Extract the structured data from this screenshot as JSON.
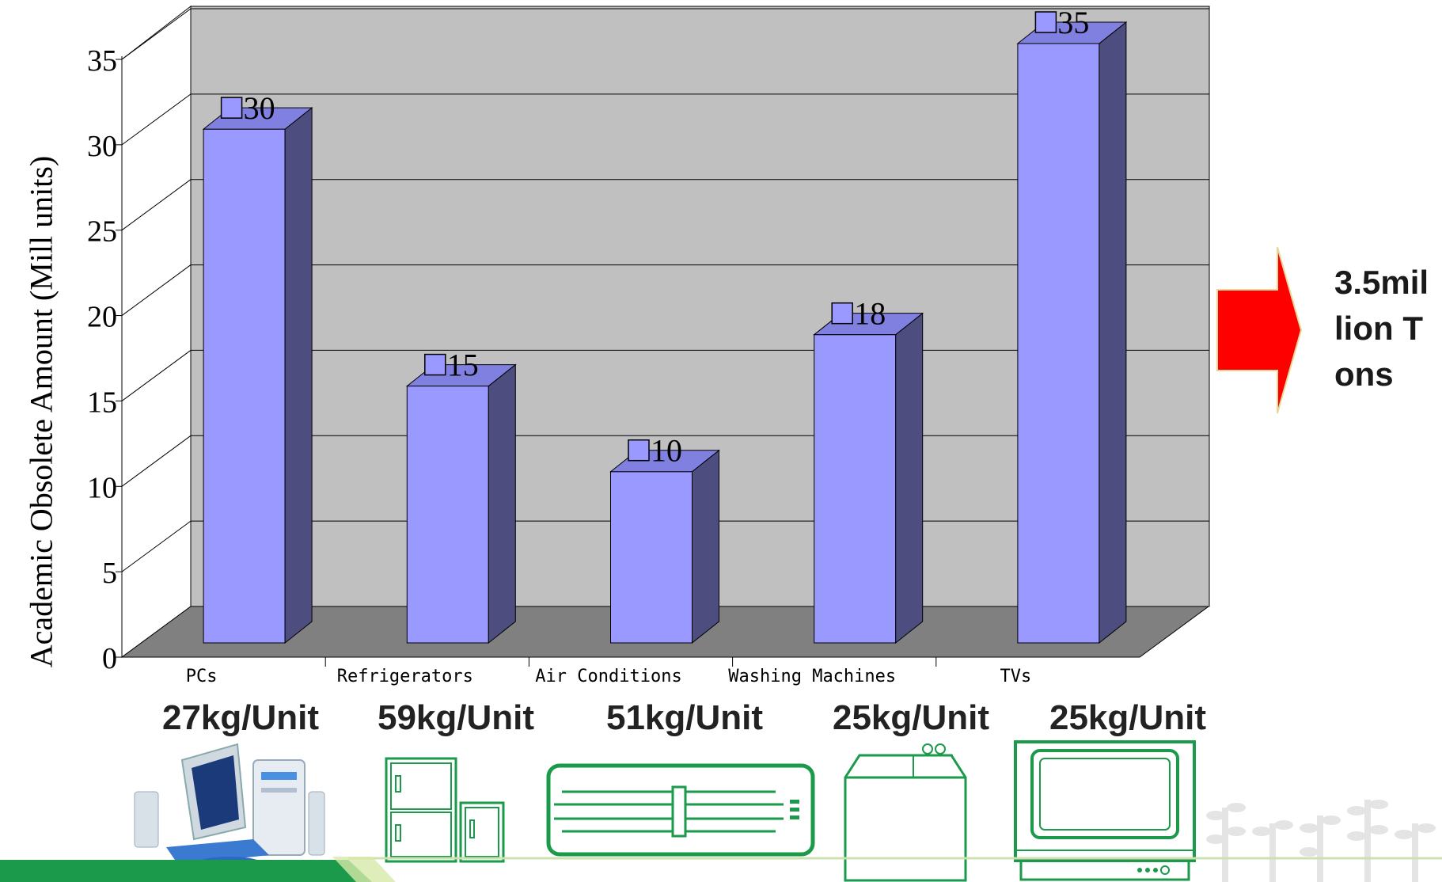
{
  "chart_data": {
    "type": "bar",
    "categories": [
      "PCs",
      "Refrigerators",
      "Air Conditions",
      "Washing Machines",
      "TVs"
    ],
    "values": [
      30,
      15,
      10,
      18,
      35
    ],
    "ylabel": "Academic Obsolete Amount (Mill units)",
    "xlabel": "",
    "ylim": [
      0,
      35
    ],
    "yticks": [
      0,
      5,
      10,
      15,
      20,
      25,
      30,
      35
    ],
    "grid": true,
    "bar_color": "#9999ff",
    "bar_side_color": "#4d4d80",
    "wall_color": "#c0c0c0",
    "floor_color": "#808080"
  },
  "unit_weights": [
    "27kg/Unit",
    "59kg/Unit",
    "51kg/Unit",
    "25kg/Unit",
    "25kg/Unit"
  ],
  "callout": {
    "text": "3.5million Tons",
    "arrow_color": "#ff0000"
  },
  "icons": [
    "computer-icon",
    "refrigerator-icon",
    "air-conditioner-icon",
    "washing-machine-icon",
    "tv-icon",
    "plant-decoration-icon"
  ],
  "accent_color": "#1a9a4a"
}
